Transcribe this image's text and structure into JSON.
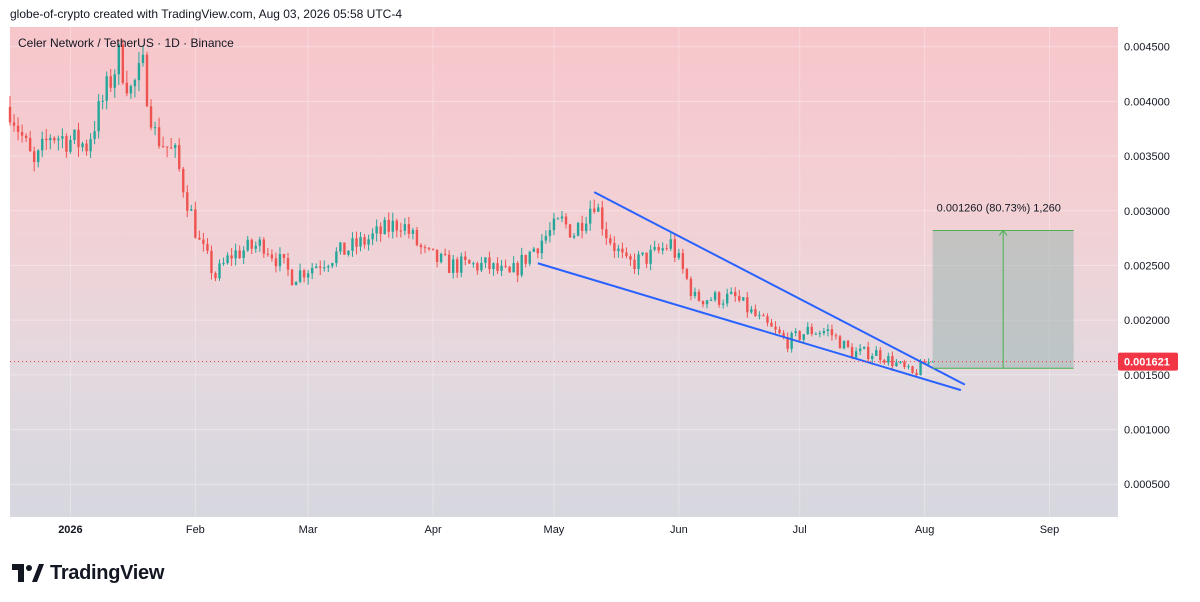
{
  "header": {
    "attribution": "globe-of-crypto created with TradingView.com, Aug 03, 2026 05:58 UTC-4"
  },
  "symbol": {
    "title": "Celer Network / TetherUS · 1D · Binance"
  },
  "brand": {
    "logo_text": "TradingView"
  },
  "colors": {
    "up": "#26a69a",
    "down": "#ef5350",
    "trendline": "#2962ff",
    "current_price": "#f23645"
  },
  "chart_data": {
    "type": "candlestick",
    "title": "Celer Network / TetherUS · 1D · Binance",
    "x_tick_labels": [
      "2026",
      "Feb",
      "Mar",
      "Apr",
      "May",
      "Jun",
      "Jul",
      "Aug",
      "Sep"
    ],
    "y_tick_labels": [
      "0.004500",
      "0.004000",
      "0.003500",
      "0.003000",
      "0.002500",
      "0.002000",
      "0.001500",
      "0.001000",
      "0.000500"
    ],
    "y_ticks": [
      0.0045,
      0.004,
      0.0035,
      0.003,
      0.0025,
      0.002,
      0.0015,
      0.001,
      0.0005
    ],
    "ylim": [
      0.0002,
      0.00468
    ],
    "x_range": [
      "2025-12-17",
      "2026-09-18"
    ],
    "current_price": 0.001621,
    "current_price_label": "0.001621",
    "price_range_measure": {
      "label": "0.001260 (80.73%) 1,260",
      "from_date": "2026-08-03",
      "to_date": "2026-09-07",
      "low": 0.00156,
      "high": 0.00282
    },
    "falling_wedge": {
      "upper": [
        [
          "2026-05-11",
          0.00317
        ],
        [
          "2026-08-11",
          0.00141
        ]
      ],
      "lower": [
        [
          "2026-04-27",
          0.00252
        ],
        [
          "2026-08-10",
          0.00136
        ]
      ]
    },
    "key_points": [
      [
        "2025-12-17",
        0.00395
      ],
      [
        "2025-12-23",
        0.0034
      ],
      [
        "2025-12-27",
        0.0037
      ],
      [
        "2026-01-05",
        0.0036
      ],
      [
        "2026-01-10",
        0.0041
      ],
      [
        "2026-01-13",
        0.0044
      ],
      [
        "2026-01-16",
        0.0041
      ],
      [
        "2026-01-19",
        0.0043
      ],
      [
        "2026-01-22",
        0.0037
      ],
      [
        "2026-01-27",
        0.0035
      ],
      [
        "2026-02-02",
        0.0027
      ],
      [
        "2026-02-06",
        0.0024
      ],
      [
        "2026-02-10",
        0.0026
      ],
      [
        "2026-02-18",
        0.0027
      ],
      [
        "2026-02-25",
        0.0024
      ],
      [
        "2026-03-08",
        0.0026
      ],
      [
        "2026-03-14",
        0.0027
      ],
      [
        "2026-03-24",
        0.0029
      ],
      [
        "2026-03-30",
        0.0026
      ],
      [
        "2026-04-05",
        0.0025
      ],
      [
        "2026-04-14",
        0.0025
      ],
      [
        "2026-04-20",
        0.0024
      ],
      [
        "2026-04-27",
        0.0027
      ],
      [
        "2026-05-03",
        0.0029
      ],
      [
        "2026-05-06",
        0.0028
      ],
      [
        "2026-05-11",
        0.0031
      ],
      [
        "2026-05-14",
        0.0028
      ],
      [
        "2026-05-19",
        0.0025
      ],
      [
        "2026-05-26",
        0.0026
      ],
      [
        "2026-05-30",
        0.0027
      ],
      [
        "2026-06-05",
        0.0022
      ],
      [
        "2026-06-15",
        0.0022
      ],
      [
        "2026-06-21",
        0.002
      ],
      [
        "2026-06-28",
        0.0018
      ],
      [
        "2026-07-03",
        0.0019
      ],
      [
        "2026-07-08",
        0.0019
      ],
      [
        "2026-07-14",
        0.0017
      ],
      [
        "2026-07-20",
        0.0017
      ],
      [
        "2026-07-25",
        0.0016
      ],
      [
        "2026-07-29",
        0.0015
      ],
      [
        "2026-08-01",
        0.0016
      ],
      [
        "2026-08-03",
        0.00162
      ]
    ]
  }
}
